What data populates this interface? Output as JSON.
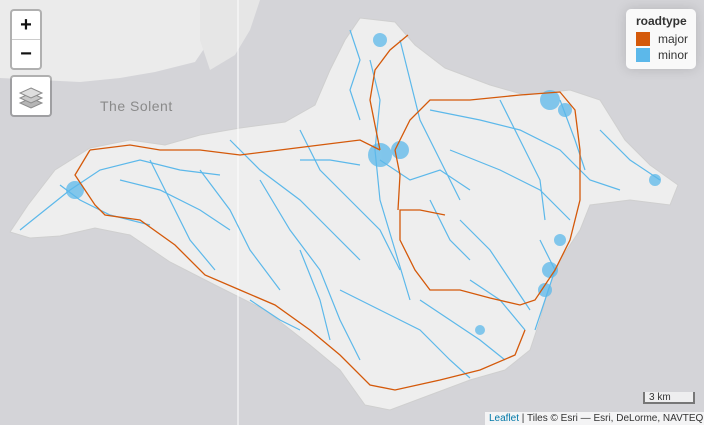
{
  "map": {
    "place_labels": [
      {
        "name": "The Solent"
      }
    ]
  },
  "controls": {
    "zoom_in": "+",
    "zoom_out": "−",
    "layers_icon": "layers-icon"
  },
  "legend": {
    "title": "roadtype",
    "items": [
      {
        "label": "major",
        "color": "#d4590a"
      },
      {
        "label": "minor",
        "color": "#5cb8ea"
      }
    ]
  },
  "scale": {
    "label": "3 km"
  },
  "attribution": {
    "link": "Leaflet",
    "text": " | Tiles © Esri — Esri, DeLorme, NAVTEQ"
  },
  "colors": {
    "water": "#d4d4d8",
    "land": "#eeeeee",
    "major": "#d4590a",
    "minor": "#5cb8ea"
  }
}
